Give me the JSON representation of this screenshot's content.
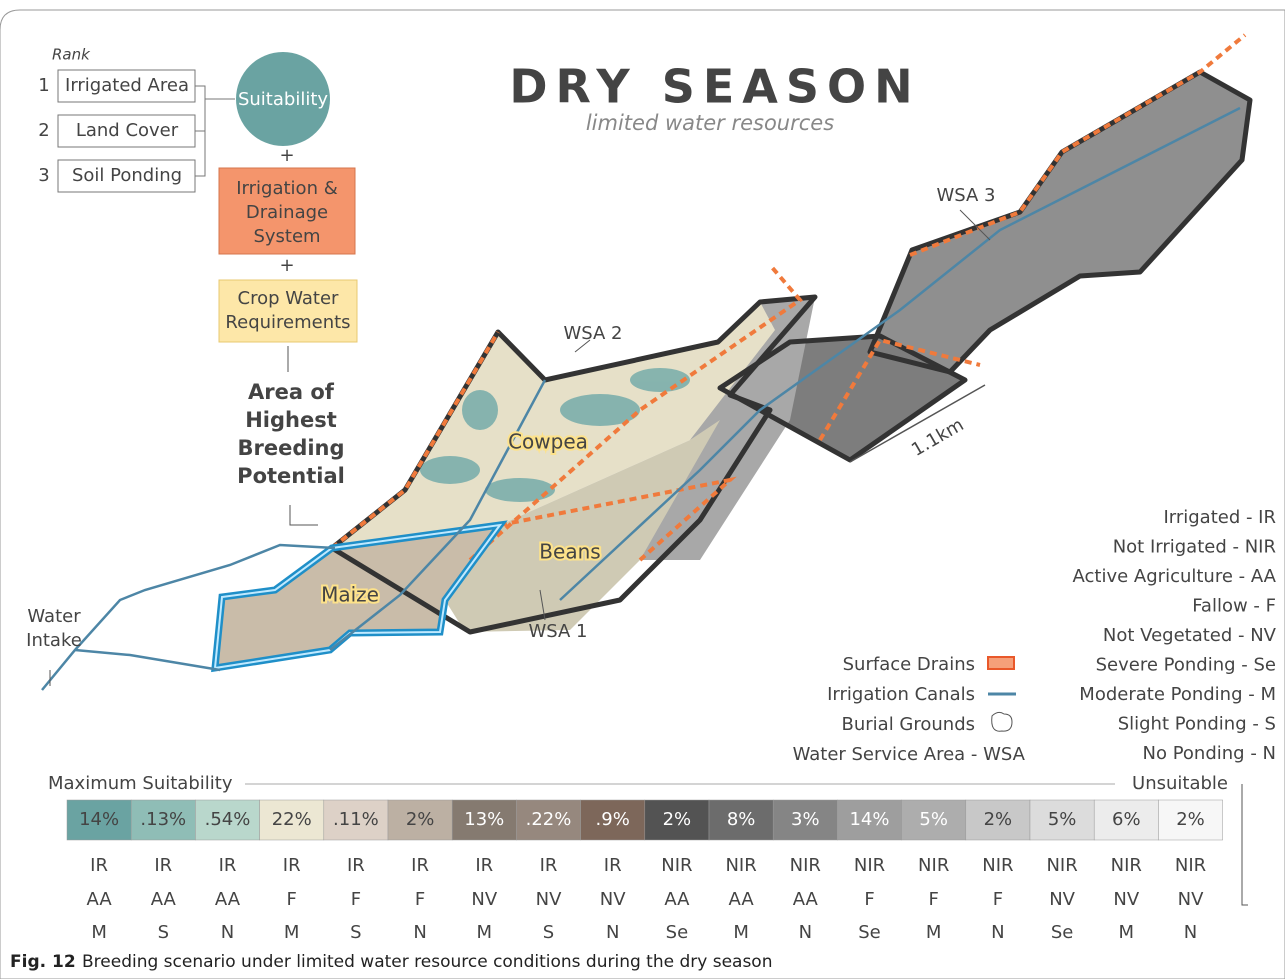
{
  "header": {
    "title": "DRY SEASON",
    "subtitle": "limited water resources"
  },
  "flow": {
    "rank_label": "Rank",
    "ranks": [
      {
        "number": "1",
        "label": "Irrigated Area"
      },
      {
        "number": "2",
        "label": "Land Cover"
      },
      {
        "number": "3",
        "label": "Soil Ponding"
      }
    ],
    "suitability": "Suitability",
    "plus": "+",
    "irrigation": [
      "Irrigation &",
      "Drainage",
      "System"
    ],
    "crop": [
      "Crop Water",
      "Requirements"
    ],
    "result": [
      "Area of",
      "Highest",
      "Breeding",
      "Potential"
    ]
  },
  "map": {
    "labels": {
      "wsa1": "WSA 1",
      "wsa2": "WSA 2",
      "wsa3": "WSA 3",
      "cowpea": "Cowpea",
      "beans": "Beans",
      "maize": "Maize",
      "scale": "1.1km"
    },
    "water_intake": [
      "Water",
      "Intake"
    ]
  },
  "legend": {
    "symbols": [
      "Surface Drains",
      "Irrigation Canals",
      "Burial Grounds",
      "Water Service Area - WSA"
    ],
    "abbreviations": [
      "Irrigated - IR",
      "Not Irrigated - NIR",
      "Active Agriculture - AA",
      "Fallow - F",
      "Not Vegetated - NV",
      "Severe Ponding - Se",
      "Moderate Ponding - M",
      "Slight Ponding - S",
      "No Ponding - N"
    ]
  },
  "scale": {
    "left_label": "Maximum Suitability",
    "right_label": "Unsuitable",
    "cells": [
      {
        "percent": "14%",
        "irrigation": "IR",
        "cover": "AA",
        "ponding": "M",
        "color": "#6aa3a2"
      },
      {
        "percent": ".13%",
        "irrigation": "IR",
        "cover": "AA",
        "ponding": "S",
        "color": "#8fbdb6"
      },
      {
        "percent": ".54%",
        "irrigation": "IR",
        "cover": "AA",
        "ponding": "N",
        "color": "#b9d7cc"
      },
      {
        "percent": "22%",
        "irrigation": "IR",
        "cover": "F",
        "ponding": "M",
        "color": "#ece7d3"
      },
      {
        "percent": ".11%",
        "irrigation": "IR",
        "cover": "F",
        "ponding": "S",
        "color": "#ddd1c7"
      },
      {
        "percent": "2%",
        "irrigation": "IR",
        "cover": "F",
        "ponding": "N",
        "color": "#bcb0a3"
      },
      {
        "percent": "13%",
        "irrigation": "IR",
        "cover": "NV",
        "ponding": "M",
        "color": "#857a70"
      },
      {
        "percent": ".22%",
        "irrigation": "IR",
        "cover": "NV",
        "ponding": "S",
        "color": "#96887e"
      },
      {
        "percent": ".9%",
        "irrigation": "IR",
        "cover": "NV",
        "ponding": "N",
        "color": "#7d675a"
      },
      {
        "percent": "2%",
        "irrigation": "NIR",
        "cover": "AA",
        "ponding": "Se",
        "color": "#535353"
      },
      {
        "percent": "8%",
        "irrigation": "NIR",
        "cover": "AA",
        "ponding": "M",
        "color": "#6c6c6c"
      },
      {
        "percent": "3%",
        "irrigation": "NIR",
        "cover": "AA",
        "ponding": "N",
        "color": "#858585"
      },
      {
        "percent": "14%",
        "irrigation": "NIR",
        "cover": "F",
        "ponding": "Se",
        "color": "#9e9e9e"
      },
      {
        "percent": "5%",
        "irrigation": "NIR",
        "cover": "F",
        "ponding": "M",
        "color": "#adadad"
      },
      {
        "percent": "2%",
        "irrigation": "NIR",
        "cover": "F",
        "ponding": "N",
        "color": "#c8c8c8"
      },
      {
        "percent": "5%",
        "irrigation": "NIR",
        "cover": "NV",
        "ponding": "Se",
        "color": "#dcdcdc"
      },
      {
        "percent": "6%",
        "irrigation": "NIR",
        "cover": "NV",
        "ponding": "M",
        "color": "#ececec"
      },
      {
        "percent": "2%",
        "irrigation": "NIR",
        "cover": "NV",
        "ponding": "N",
        "color": "#f7f7f7"
      }
    ]
  },
  "caption": {
    "label": "Fig. 12",
    "text": "Breeding scenario under limited water resource conditions during the dry season"
  }
}
